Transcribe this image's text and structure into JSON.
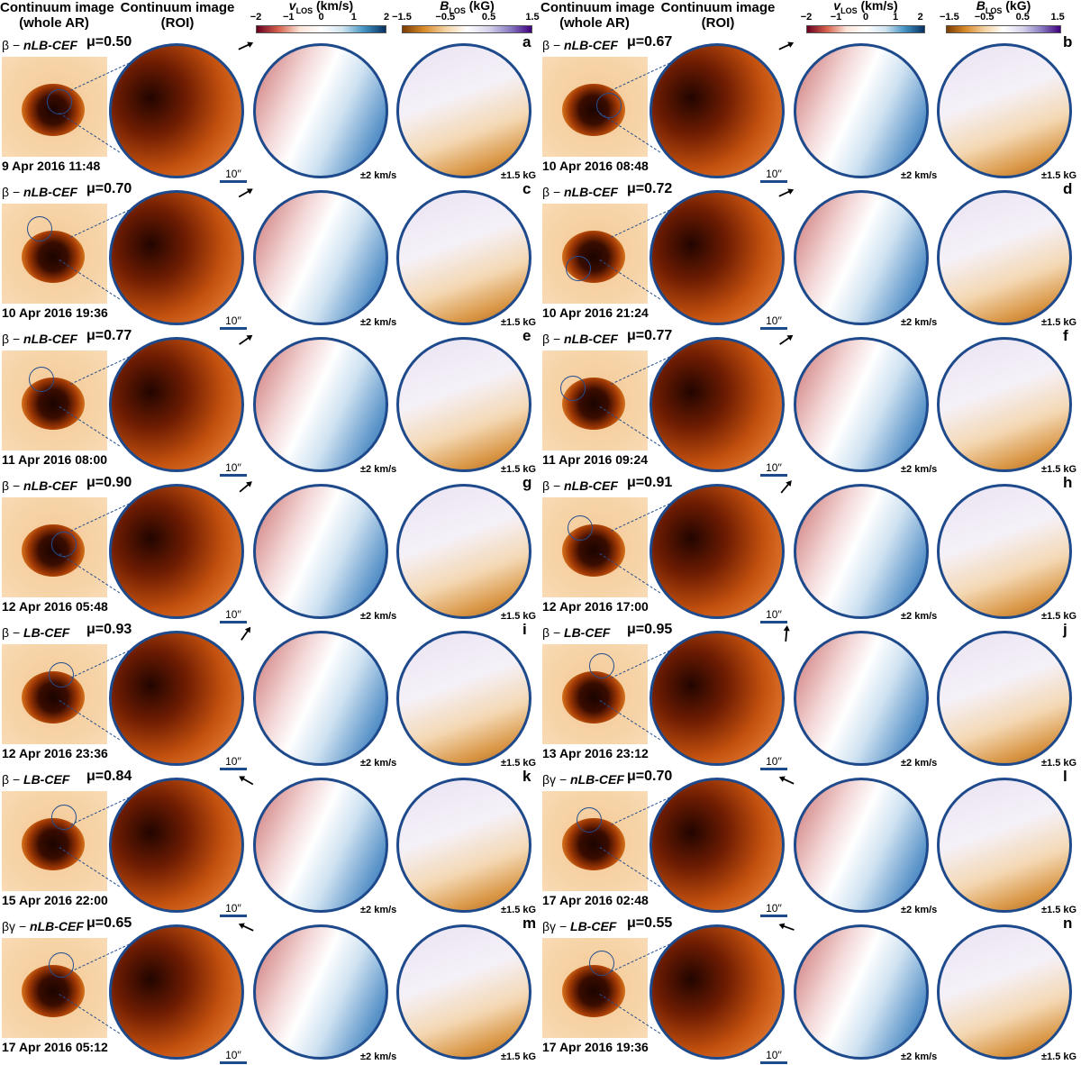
{
  "headers": {
    "left": {
      "whole_l1": "Continuum image",
      "whole_l2": "(whole AR)",
      "roi_l1": "Continuum image",
      "roi_l2": "(ROI)",
      "vel_sym": "v",
      "vel_sub": "LOS",
      "vel_unit": " (km/s)",
      "vel_ticks": [
        "−2",
        "−1",
        "0",
        "1",
        "2"
      ],
      "mag_sym": "B",
      "mag_sub": "LOS",
      "mag_unit": " (kG)",
      "mag_ticks": [
        "−1.5",
        "−0.5",
        "0.5",
        "1.5"
      ]
    },
    "right": {
      "whole_l1": "Continuum image",
      "whole_l2": "(whole AR)",
      "roi_l1": "Continuum image",
      "roi_l2": "(ROI)",
      "vel_sym": "v",
      "vel_sub": "LOS",
      "vel_unit": " (km/s)",
      "vel_ticks": [
        "−2",
        "−1",
        "0",
        "1",
        "2"
      ],
      "mag_sym": "B",
      "mag_sub": "LOS",
      "mag_unit": " (kG)",
      "mag_ticks": [
        "−1.5",
        "−0.5",
        "0.5",
        "1.5"
      ]
    }
  },
  "colormaps": {
    "velocity": [
      "#67001f",
      "#d6604d",
      "#fbe4d8",
      "#ffffff",
      "#d1e5f0",
      "#4393c3",
      "#053061"
    ],
    "magnetic": [
      "#7a3c00",
      "#d98a2b",
      "#f3d3a3",
      "#ffffff",
      "#d8d4ec",
      "#8a7cc2",
      "#3f007d"
    ]
  },
  "panels": [
    {
      "letter": "a",
      "type_prefix": "β − ",
      "type_name": "nLB-CEF",
      "mu": "μ=0.50",
      "date": "9 Apr 2016 11:48",
      "scale": "10′′",
      "v_range": "±2 km/s",
      "b_range": "±1.5 kG",
      "arrow_angle": -25
    },
    {
      "letter": "b",
      "type_prefix": "β − ",
      "type_name": "nLB-CEF",
      "mu": "μ=0.67",
      "date": "10 Apr 2016 08:48",
      "scale": "10′′",
      "v_range": "±2 km/s",
      "b_range": "±1.5 kG",
      "arrow_angle": -25
    },
    {
      "letter": "c",
      "type_prefix": "β − ",
      "type_name": "nLB-CEF",
      "mu": "μ=0.70",
      "date": "10 Apr 2016 19:36",
      "scale": "10′′",
      "v_range": "±2 km/s",
      "b_range": "±1.5 kG",
      "arrow_angle": -30
    },
    {
      "letter": "d",
      "type_prefix": "β − ",
      "type_name": "nLB-CEF",
      "mu": "μ=0.72",
      "date": "10 Apr 2016 21:24",
      "scale": "10′′",
      "v_range": "±2 km/s",
      "b_range": "±1.5 kG",
      "arrow_angle": -25
    },
    {
      "letter": "e",
      "type_prefix": "β − ",
      "type_name": "nLB-CEF",
      "mu": "μ=0.77",
      "date": "11 Apr 2016 08:00",
      "scale": "10′′",
      "v_range": "±2 km/s",
      "b_range": "±1.5 kG",
      "arrow_angle": -35
    },
    {
      "letter": "f",
      "type_prefix": "β − ",
      "type_name": "nLB-CEF",
      "mu": "μ=0.77",
      "date": "11 Apr 2016 09:24",
      "scale": "10′′",
      "v_range": "±2 km/s",
      "b_range": "±1.5 kG",
      "arrow_angle": -35
    },
    {
      "letter": "g",
      "type_prefix": "β − ",
      "type_name": "nLB-CEF",
      "mu": "μ=0.90",
      "date": "12 Apr 2016 05:48",
      "scale": "10′′",
      "v_range": "±2 km/s",
      "b_range": "±1.5 kG",
      "arrow_angle": -40
    },
    {
      "letter": "h",
      "type_prefix": "β − ",
      "type_name": "nLB-CEF",
      "mu": "μ=0.91",
      "date": "12 Apr 2016 17:00",
      "scale": "10′′",
      "v_range": "±2 km/s",
      "b_range": "±1.5 kG",
      "arrow_angle": -50
    },
    {
      "letter": "i",
      "type_prefix": "β − ",
      "type_name": "LB-CEF",
      "mu": "μ=0.93",
      "date": "12 Apr 2016 23:36",
      "scale": "10′′",
      "v_range": "±2 km/s",
      "b_range": "±1.5 kG",
      "arrow_angle": -55
    },
    {
      "letter": "j",
      "type_prefix": "β − ",
      "type_name": "LB-CEF",
      "mu": "μ=0.95",
      "date": "13 Apr 2016 23:12",
      "scale": "10′′",
      "v_range": "±2 km/s",
      "b_range": "±1.5 kG",
      "arrow_angle": -85
    },
    {
      "letter": "k",
      "type_prefix": "β − ",
      "type_name": "LB-CEF",
      "mu": "μ=0.84",
      "date": "15 Apr 2016 22:00",
      "scale": "10′′",
      "v_range": "±2 km/s",
      "b_range": "±1.5 kG",
      "arrow_angle": -150
    },
    {
      "letter": "l",
      "type_prefix": "βγ − ",
      "type_name": "nLB-CEF",
      "mu": "μ=0.70",
      "date": "17 Apr 2016 02:48",
      "scale": "10′′",
      "v_range": "±2 km/s",
      "b_range": "±1.5 kG",
      "arrow_angle": -155
    },
    {
      "letter": "m",
      "type_prefix": "βγ − ",
      "type_name": "nLB-CEF",
      "mu": "μ=0.65",
      "date": "17 Apr 2016 05:12",
      "scale": "10′′",
      "v_range": "±2 km/s",
      "b_range": "±1.5 kG",
      "arrow_angle": -155
    },
    {
      "letter": "n",
      "type_prefix": "βγ − ",
      "type_name": "LB-CEF",
      "mu": "μ=0.55",
      "date": "17 Apr 2016 19:36",
      "scale": "10′′",
      "v_range": "±2 km/s",
      "b_range": "±1.5 kG",
      "arrow_angle": -160
    }
  ]
}
